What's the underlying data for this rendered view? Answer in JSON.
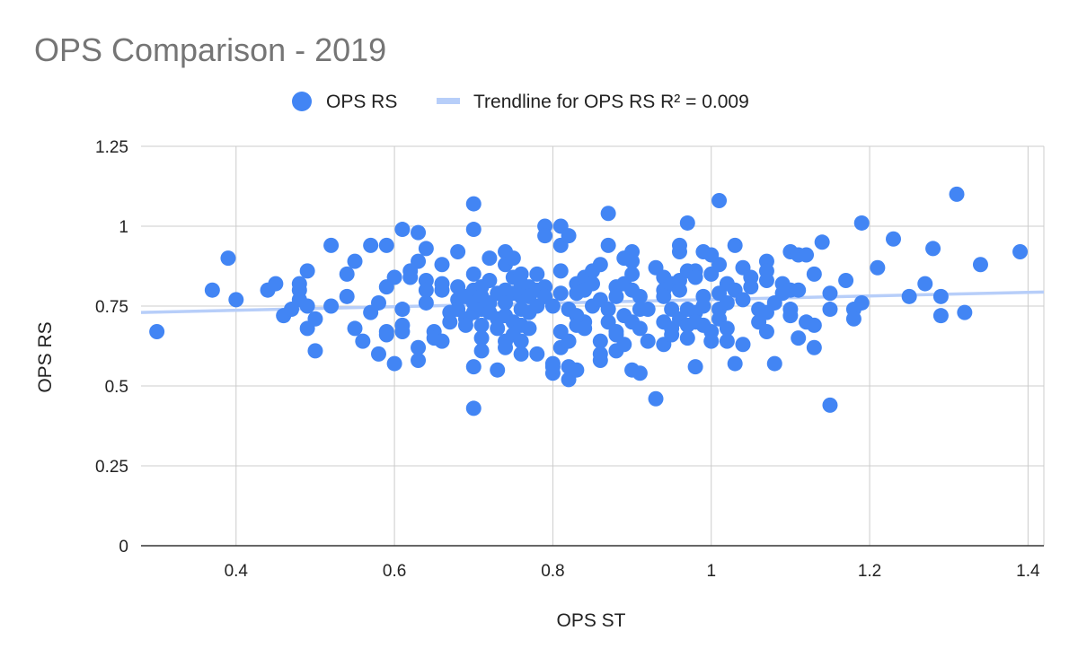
{
  "chart_data": {
    "type": "scatter",
    "title": "OPS Comparison - 2019",
    "xlabel": "OPS ST",
    "ylabel": "OPS RS",
    "xlim": [
      0.28,
      1.42
    ],
    "ylim": [
      0,
      1.25
    ],
    "x_ticks": [
      "0.4",
      "0.6",
      "0.8",
      "1",
      "1.2",
      "1.4"
    ],
    "y_ticks": [
      "0",
      "0.25",
      "0.5",
      "0.75",
      "1",
      "1.25"
    ],
    "grid": true,
    "legend_position": "top",
    "series": [
      {
        "name": "OPS RS",
        "color": "#4285f4",
        "points": [
          [
            0.3,
            0.67
          ],
          [
            0.37,
            0.8
          ],
          [
            0.39,
            0.9
          ],
          [
            0.4,
            0.77
          ],
          [
            0.44,
            0.8
          ],
          [
            0.45,
            0.82
          ],
          [
            0.46,
            0.72
          ],
          [
            0.47,
            0.74
          ],
          [
            0.48,
            0.82
          ],
          [
            0.48,
            0.8
          ],
          [
            0.48,
            0.77
          ],
          [
            0.49,
            0.86
          ],
          [
            0.49,
            0.75
          ],
          [
            0.49,
            0.68
          ],
          [
            0.5,
            0.61
          ],
          [
            0.5,
            0.71
          ],
          [
            0.52,
            0.94
          ],
          [
            0.52,
            0.75
          ],
          [
            0.54,
            0.78
          ],
          [
            0.54,
            0.85
          ],
          [
            0.55,
            0.89
          ],
          [
            0.55,
            0.68
          ],
          [
            0.56,
            0.64
          ],
          [
            0.57,
            0.94
          ],
          [
            0.57,
            0.73
          ],
          [
            0.58,
            0.76
          ],
          [
            0.58,
            0.6
          ],
          [
            0.59,
            0.94
          ],
          [
            0.59,
            0.81
          ],
          [
            0.59,
            0.67
          ],
          [
            0.59,
            0.66
          ],
          [
            0.6,
            0.84
          ],
          [
            0.6,
            0.57
          ],
          [
            0.61,
            0.69
          ],
          [
            0.61,
            0.99
          ],
          [
            0.61,
            0.74
          ],
          [
            0.61,
            0.67
          ],
          [
            0.62,
            0.86
          ],
          [
            0.62,
            0.84
          ],
          [
            0.63,
            0.98
          ],
          [
            0.63,
            0.89
          ],
          [
            0.63,
            0.62
          ],
          [
            0.63,
            0.58
          ],
          [
            0.64,
            0.83
          ],
          [
            0.64,
            0.8
          ],
          [
            0.64,
            0.93
          ],
          [
            0.64,
            0.76
          ],
          [
            0.65,
            0.67
          ],
          [
            0.65,
            0.65
          ],
          [
            0.66,
            0.88
          ],
          [
            0.66,
            0.82
          ],
          [
            0.66,
            0.8
          ],
          [
            0.66,
            0.64
          ],
          [
            0.67,
            0.73
          ],
          [
            0.67,
            0.7
          ],
          [
            0.68,
            0.92
          ],
          [
            0.68,
            0.81
          ],
          [
            0.68,
            0.77
          ],
          [
            0.68,
            0.74
          ],
          [
            0.69,
            0.78
          ],
          [
            0.69,
            0.71
          ],
          [
            0.69,
            0.69
          ],
          [
            0.7,
            0.85
          ],
          [
            0.7,
            0.8
          ],
          [
            0.7,
            0.73
          ],
          [
            0.7,
            0.76
          ],
          [
            0.7,
            0.99
          ],
          [
            0.7,
            1.07
          ],
          [
            0.7,
            0.56
          ],
          [
            0.7,
            0.43
          ],
          [
            0.71,
            0.81
          ],
          [
            0.71,
            0.78
          ],
          [
            0.71,
            0.74
          ],
          [
            0.71,
            0.69
          ],
          [
            0.71,
            0.65
          ],
          [
            0.71,
            0.61
          ],
          [
            0.72,
            0.9
          ],
          [
            0.72,
            0.83
          ],
          [
            0.72,
            0.76
          ],
          [
            0.72,
            0.73
          ],
          [
            0.73,
            0.79
          ],
          [
            0.73,
            0.71
          ],
          [
            0.73,
            0.68
          ],
          [
            0.73,
            0.55
          ],
          [
            0.74,
            0.92
          ],
          [
            0.74,
            0.88
          ],
          [
            0.74,
            0.8
          ],
          [
            0.74,
            0.76
          ],
          [
            0.74,
            0.72
          ],
          [
            0.74,
            0.64
          ],
          [
            0.74,
            0.62
          ],
          [
            0.75,
            0.9
          ],
          [
            0.75,
            0.84
          ],
          [
            0.75,
            0.79
          ],
          [
            0.75,
            0.7
          ],
          [
            0.75,
            0.66
          ],
          [
            0.76,
            0.85
          ],
          [
            0.76,
            0.82
          ],
          [
            0.76,
            0.78
          ],
          [
            0.76,
            0.74
          ],
          [
            0.76,
            0.69
          ],
          [
            0.76,
            0.64
          ],
          [
            0.76,
            0.6
          ],
          [
            0.77,
            0.81
          ],
          [
            0.77,
            0.78
          ],
          [
            0.77,
            0.73
          ],
          [
            0.77,
            0.68
          ],
          [
            0.78,
            0.85
          ],
          [
            0.78,
            0.8
          ],
          [
            0.78,
            0.75
          ],
          [
            0.78,
            0.6
          ],
          [
            0.79,
            1.0
          ],
          [
            0.79,
            0.97
          ],
          [
            0.79,
            0.81
          ],
          [
            0.79,
            0.78
          ],
          [
            0.8,
            0.75
          ],
          [
            0.8,
            0.57
          ],
          [
            0.8,
            0.54
          ],
          [
            0.8,
            0.56
          ],
          [
            0.81,
            0.67
          ],
          [
            0.81,
            0.79
          ],
          [
            0.81,
            0.94
          ],
          [
            0.81,
            1.0
          ],
          [
            0.81,
            0.86
          ],
          [
            0.81,
            0.62
          ],
          [
            0.82,
            0.97
          ],
          [
            0.82,
            0.74
          ],
          [
            0.82,
            0.64
          ],
          [
            0.82,
            0.56
          ],
          [
            0.82,
            0.52
          ],
          [
            0.83,
            0.82
          ],
          [
            0.83,
            0.79
          ],
          [
            0.83,
            0.72
          ],
          [
            0.83,
            0.69
          ],
          [
            0.83,
            0.55
          ],
          [
            0.84,
            0.84
          ],
          [
            0.84,
            0.8
          ],
          [
            0.84,
            0.7
          ],
          [
            0.84,
            0.68
          ],
          [
            0.85,
            0.86
          ],
          [
            0.85,
            0.82
          ],
          [
            0.85,
            0.75
          ],
          [
            0.86,
            0.88
          ],
          [
            0.86,
            0.77
          ],
          [
            0.86,
            0.64
          ],
          [
            0.86,
            0.6
          ],
          [
            0.86,
            0.58
          ],
          [
            0.87,
            1.04
          ],
          [
            0.87,
            0.94
          ],
          [
            0.87,
            0.74
          ],
          [
            0.87,
            0.7
          ],
          [
            0.88,
            0.81
          ],
          [
            0.88,
            0.78
          ],
          [
            0.88,
            0.67
          ],
          [
            0.88,
            0.66
          ],
          [
            0.88,
            0.61
          ],
          [
            0.89,
            0.9
          ],
          [
            0.89,
            0.82
          ],
          [
            0.89,
            0.72
          ],
          [
            0.89,
            0.63
          ],
          [
            0.9,
            0.92
          ],
          [
            0.9,
            0.89
          ],
          [
            0.9,
            0.85
          ],
          [
            0.9,
            0.8
          ],
          [
            0.9,
            0.7
          ],
          [
            0.9,
            0.55
          ],
          [
            0.91,
            0.78
          ],
          [
            0.91,
            0.74
          ],
          [
            0.91,
            0.68
          ],
          [
            0.91,
            0.54
          ],
          [
            0.92,
            0.74
          ],
          [
            0.92,
            0.64
          ],
          [
            0.93,
            0.87
          ],
          [
            0.93,
            0.46
          ],
          [
            0.94,
            0.84
          ],
          [
            0.94,
            0.8
          ],
          [
            0.94,
            0.78
          ],
          [
            0.94,
            0.7
          ],
          [
            0.94,
            0.63
          ],
          [
            0.95,
            0.82
          ],
          [
            0.95,
            0.74
          ],
          [
            0.95,
            0.68
          ],
          [
            0.95,
            0.66
          ],
          [
            0.96,
            0.92
          ],
          [
            0.96,
            0.94
          ],
          [
            0.96,
            0.83
          ],
          [
            0.96,
            0.8
          ],
          [
            0.96,
            0.71
          ],
          [
            0.97,
            1.01
          ],
          [
            0.97,
            0.86
          ],
          [
            0.97,
            0.74
          ],
          [
            0.97,
            0.69
          ],
          [
            0.97,
            0.65
          ],
          [
            0.98,
            0.86
          ],
          [
            0.98,
            0.84
          ],
          [
            0.98,
            0.73
          ],
          [
            0.98,
            0.7
          ],
          [
            0.98,
            0.56
          ],
          [
            0.99,
            0.92
          ],
          [
            0.99,
            0.78
          ],
          [
            0.99,
            0.75
          ],
          [
            0.99,
            0.69
          ],
          [
            1.0,
            0.91
          ],
          [
            1.0,
            0.85
          ],
          [
            1.0,
            0.67
          ],
          [
            1.0,
            0.64
          ],
          [
            1.01,
            1.08
          ],
          [
            1.01,
            0.88
          ],
          [
            1.01,
            0.79
          ],
          [
            1.01,
            0.74
          ],
          [
            1.01,
            0.71
          ],
          [
            1.02,
            0.82
          ],
          [
            1.02,
            0.76
          ],
          [
            1.02,
            0.68
          ],
          [
            1.02,
            0.64
          ],
          [
            1.03,
            0.94
          ],
          [
            1.03,
            0.8
          ],
          [
            1.03,
            0.57
          ],
          [
            1.04,
            0.87
          ],
          [
            1.04,
            0.77
          ],
          [
            1.04,
            0.63
          ],
          [
            1.05,
            0.84
          ],
          [
            1.05,
            0.81
          ],
          [
            1.06,
            0.74
          ],
          [
            1.06,
            0.7
          ],
          [
            1.07,
            0.89
          ],
          [
            1.07,
            0.86
          ],
          [
            1.07,
            0.83
          ],
          [
            1.07,
            0.73
          ],
          [
            1.07,
            0.67
          ],
          [
            1.08,
            0.76
          ],
          [
            1.08,
            0.57
          ],
          [
            1.09,
            0.82
          ],
          [
            1.09,
            0.79
          ],
          [
            1.1,
            0.92
          ],
          [
            1.1,
            0.8
          ],
          [
            1.1,
            0.74
          ],
          [
            1.1,
            0.72
          ],
          [
            1.11,
            0.91
          ],
          [
            1.11,
            0.65
          ],
          [
            1.11,
            0.8
          ],
          [
            1.12,
            0.91
          ],
          [
            1.12,
            0.7
          ],
          [
            1.13,
            0.85
          ],
          [
            1.13,
            0.69
          ],
          [
            1.13,
            0.62
          ],
          [
            1.14,
            0.95
          ],
          [
            1.15,
            0.79
          ],
          [
            1.15,
            0.74
          ],
          [
            1.15,
            0.44
          ],
          [
            1.17,
            0.83
          ],
          [
            1.18,
            0.74
          ],
          [
            1.18,
            0.71
          ],
          [
            1.19,
            1.01
          ],
          [
            1.19,
            0.76
          ],
          [
            1.21,
            0.87
          ],
          [
            1.23,
            0.96
          ],
          [
            1.25,
            0.78
          ],
          [
            1.27,
            0.82
          ],
          [
            1.28,
            0.93
          ],
          [
            1.29,
            0.78
          ],
          [
            1.29,
            0.72
          ],
          [
            1.31,
            1.1
          ],
          [
            1.32,
            0.73
          ],
          [
            1.34,
            0.88
          ],
          [
            1.39,
            0.92
          ]
        ]
      },
      {
        "name": "Trendline for OPS RS R² = 0.009",
        "type": "line",
        "color": "#b7cef9",
        "points": [
          [
            0.28,
            0.73
          ],
          [
            1.42,
            0.794
          ]
        ]
      }
    ]
  }
}
